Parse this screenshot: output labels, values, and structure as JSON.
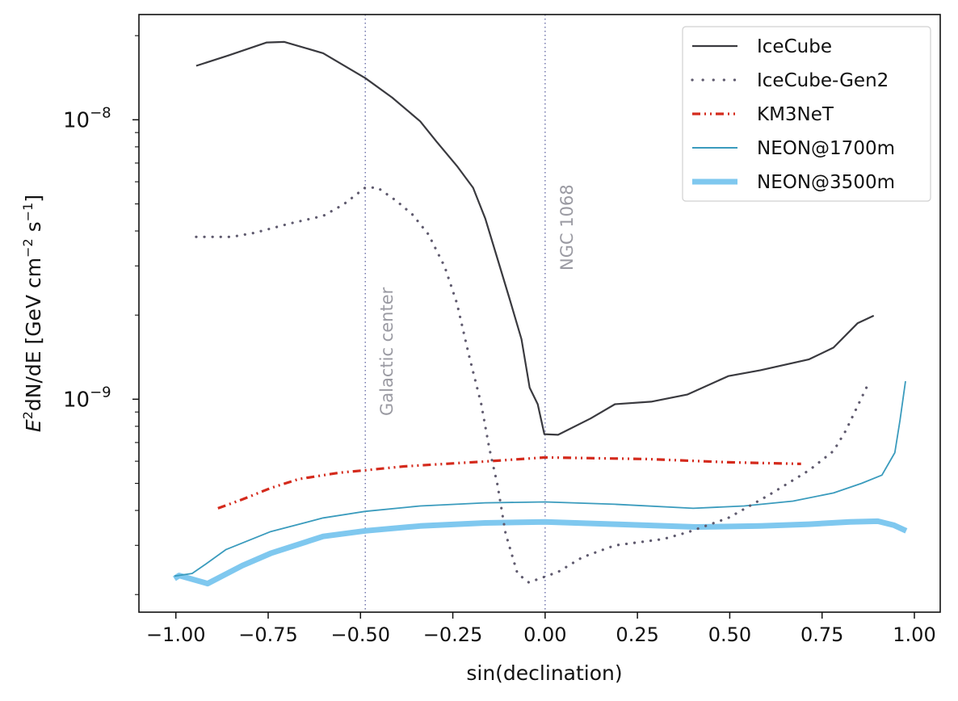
{
  "chart_data": {
    "type": "line",
    "title": "",
    "xlabel": "sin(declination)",
    "ylabel": {
      "base": "E",
      "sup1": "2",
      "mid": "dN/dE  [GeV cm",
      "sup2": "−2",
      "mid2": " s",
      "sup3": "−1",
      "end": "]"
    },
    "xlim": [
      -1.1,
      1.07
    ],
    "ylim": [
      1.73e-10,
      2.38e-08
    ],
    "yscale": "log",
    "grid": false,
    "legend_position": "top-right",
    "xticks": [
      {
        "value": -1.0,
        "label": "−1.00"
      },
      {
        "value": -0.75,
        "label": "−0.75"
      },
      {
        "value": -0.5,
        "label": "−0.50"
      },
      {
        "value": -0.25,
        "label": "−0.25"
      },
      {
        "value": 0.0,
        "label": "0.00"
      },
      {
        "value": 0.25,
        "label": "0.25"
      },
      {
        "value": 0.5,
        "label": "0.50"
      },
      {
        "value": 0.75,
        "label": "0.75"
      },
      {
        "value": 1.0,
        "label": "1.00"
      }
    ],
    "yticks_major": [
      {
        "value": 1e-08,
        "base": "10",
        "exp": "−8"
      },
      {
        "value": 1e-09,
        "base": "10",
        "exp": "−9"
      }
    ],
    "yticks_minor": [
      2e-10,
      3e-10,
      4e-10,
      5e-10,
      6e-10,
      7e-10,
      8e-10,
      9e-10,
      2e-09,
      3e-09,
      4e-09,
      5e-09,
      6e-09,
      7e-09,
      8e-09,
      9e-09,
      2e-08
    ],
    "annotations": [
      {
        "x": -0.487,
        "label": "Galactic center",
        "color": "#6a6fa8"
      },
      {
        "x": 0.0,
        "label": "NGC 1068",
        "color": "#6a6fa8"
      }
    ],
    "series": [
      {
        "name": "IceCube",
        "color": "#3a3a3f",
        "style": "solid",
        "x": [
          -0.945,
          -0.857,
          -0.754,
          -0.706,
          -0.601,
          -0.487,
          -0.414,
          -0.338,
          -0.294,
          -0.239,
          -0.195,
          -0.162,
          -0.129,
          -0.096,
          -0.064,
          -0.042,
          -0.02,
          -0.002,
          0.035,
          0.123,
          0.189,
          0.287,
          0.386,
          0.496,
          0.583,
          0.715,
          0.781,
          0.846,
          0.89
        ],
        "y": [
          1.56e-08,
          1.7e-08,
          1.89e-08,
          1.9e-08,
          1.73e-08,
          1.41e-08,
          1.2e-08,
          9.87e-09,
          8.35e-09,
          6.84e-09,
          5.71e-09,
          4.43e-09,
          3.18e-09,
          2.28e-09,
          1.64e-09,
          1.1e-09,
          9.6e-10,
          7.5e-10,
          7.46e-10,
          8.53e-10,
          9.6e-10,
          9.8e-10,
          1.04e-09,
          1.21e-09,
          1.27e-09,
          1.39e-09,
          1.53e-09,
          1.87e-09,
          1.99e-09
        ]
      },
      {
        "name": "IceCube-Gen2",
        "color": "#5f5a6e",
        "style": "dotted",
        "x": [
          -0.945,
          -0.849,
          -0.787,
          -0.689,
          -0.601,
          -0.546,
          -0.487,
          -0.454,
          -0.404,
          -0.36,
          -0.316,
          -0.272,
          -0.239,
          -0.206,
          -0.173,
          -0.151,
          -0.129,
          -0.107,
          -0.075,
          -0.044,
          0.035,
          0.101,
          0.189,
          0.32,
          0.386,
          0.496,
          0.605,
          0.715,
          0.781,
          0.814,
          0.873
        ],
        "y": [
          3.81e-09,
          3.81e-09,
          3.94e-09,
          4.26e-09,
          4.53e-09,
          4.98e-09,
          5.72e-09,
          5.72e-09,
          5.14e-09,
          4.59e-09,
          3.89e-09,
          2.98e-09,
          2.21e-09,
          1.43e-09,
          9.6e-10,
          6.67e-10,
          4.94e-10,
          3.31e-10,
          2.38e-10,
          2.21e-10,
          2.41e-10,
          2.72e-10,
          3e-10,
          3.16e-10,
          3.34e-10,
          3.76e-10,
          4.53e-10,
          5.57e-10,
          6.53e-10,
          7.71e-10,
          1.12e-09
        ]
      },
      {
        "name": "KM3NeT",
        "color": "#d42a1c",
        "style": "dashdotdot",
        "x": [
          -0.886,
          -0.82,
          -0.743,
          -0.667,
          -0.557,
          -0.487,
          -0.382,
          -0.272,
          -0.162,
          0.0,
          0.276,
          0.496,
          0.693
        ],
        "y": [
          4.07e-10,
          4.38e-10,
          4.81e-10,
          5.18e-10,
          5.46e-10,
          5.57e-10,
          5.75e-10,
          5.87e-10,
          5.99e-10,
          6.19e-10,
          6.11e-10,
          5.95e-10,
          5.87e-10
        ]
      },
      {
        "name": "NEON@1700m",
        "color": "#3a9bbd",
        "style": "solid",
        "x": [
          -1.004,
          -0.956,
          -0.919,
          -0.864,
          -0.743,
          -0.601,
          -0.487,
          -0.338,
          -0.162,
          0.0,
          0.189,
          0.401,
          0.539,
          0.671,
          0.781,
          0.857,
          0.912,
          0.947,
          0.961,
          0.976
        ],
        "y": [
          2.33e-10,
          2.38e-10,
          2.57e-10,
          2.9e-10,
          3.36e-10,
          3.76e-10,
          3.97e-10,
          4.15e-10,
          4.26e-10,
          4.29e-10,
          4.21e-10,
          4.07e-10,
          4.15e-10,
          4.32e-10,
          4.62e-10,
          5e-10,
          5.35e-10,
          6.44e-10,
          8.41e-10,
          1.16e-09
        ]
      },
      {
        "name": "NEON@3500m",
        "color": "#7fc8ef",
        "style": "thick",
        "x": [
          -1.004,
          -0.991,
          -0.914,
          -0.82,
          -0.743,
          -0.601,
          -0.487,
          -0.338,
          -0.162,
          0.0,
          0.189,
          0.408,
          0.583,
          0.715,
          0.825,
          0.901,
          0.945,
          0.978
        ],
        "y": [
          2.28e-10,
          2.34e-10,
          2.19e-10,
          2.54e-10,
          2.81e-10,
          3.23e-10,
          3.38e-10,
          3.52e-10,
          3.61e-10,
          3.64e-10,
          3.57e-10,
          3.49e-10,
          3.52e-10,
          3.57e-10,
          3.64e-10,
          3.66e-10,
          3.54e-10,
          3.38e-10
        ]
      }
    ]
  }
}
